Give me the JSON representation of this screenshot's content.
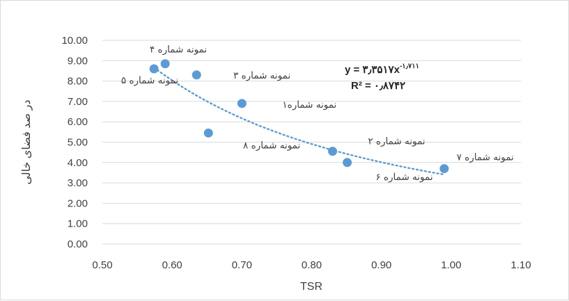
{
  "chart_data": {
    "type": "scatter",
    "xlabel": "TSR",
    "ylabel": "در صد فضای خالی",
    "xlim": [
      0.5,
      1.1
    ],
    "ylim": [
      0,
      10
    ],
    "x_ticks": [
      "0.50",
      "0.60",
      "0.70",
      "0.80",
      "0.90",
      "1.00",
      "1.10"
    ],
    "y_ticks": [
      "0.00",
      "1.00",
      "2.00",
      "3.00",
      "4.00",
      "5.00",
      "6.00",
      "7.00",
      "8.00",
      "9.00",
      "10.00"
    ],
    "grid": "horizontal",
    "legend": "none",
    "points": [
      {
        "x": 0.574,
        "y": 8.6,
        "label": "نمونه شماره ۵"
      },
      {
        "x": 0.59,
        "y": 8.85,
        "label": "نمونه شماره ۴"
      },
      {
        "x": 0.635,
        "y": 8.3,
        "label": "نمونه شماره ۳"
      },
      {
        "x": 0.7,
        "y": 6.9,
        "label": "نمونه شماره۱"
      },
      {
        "x": 0.652,
        "y": 5.45,
        "label": "نمونه شماره ۸"
      },
      {
        "x": 0.83,
        "y": 4.55,
        "label": "نمونه  شماره ۲"
      },
      {
        "x": 0.851,
        "y": 4.0,
        "label": "نمونه شماره ۶"
      },
      {
        "x": 0.99,
        "y": 3.7,
        "label": "نمونه  شماره ۷"
      }
    ],
    "trendline": {
      "type": "power",
      "coefficient": 3.3517,
      "exponent": -1.711,
      "x_range": [
        0.574,
        0.99
      ],
      "equation_base": "y = ۳٫۳۵۱۷x",
      "equation_exp": "-۱٫۷۱۱",
      "r_squared_label": "R² = ۰٫۸۷۴۲"
    },
    "colors": {
      "marker": "#5b9bd5",
      "trendline": "#5b9bd5",
      "gridline": "#d9d9d9",
      "text": "#404040"
    }
  }
}
